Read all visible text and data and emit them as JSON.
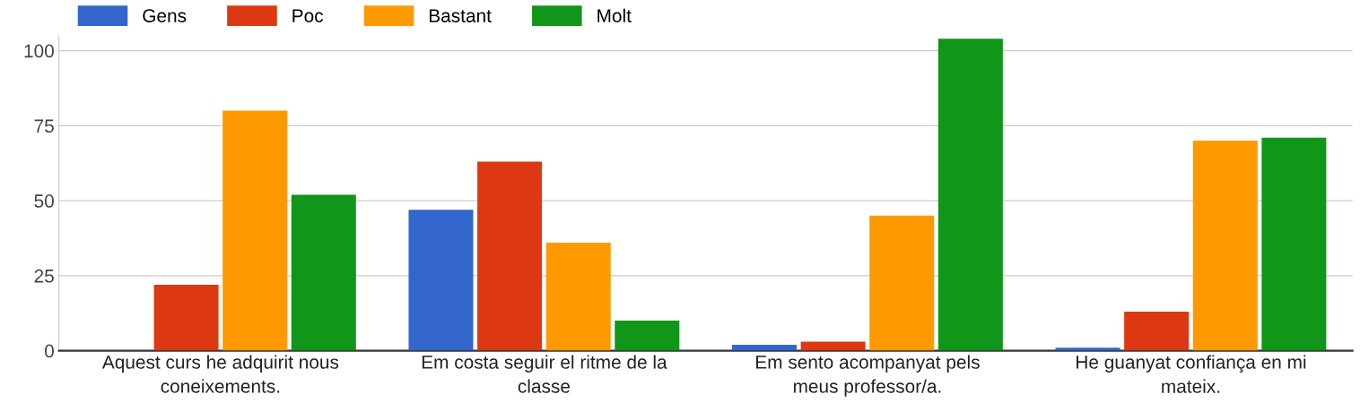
{
  "chart_data": {
    "type": "bar",
    "categories": [
      "Aquest curs he adquirit nous\nconeixements.",
      "Em costa seguir el ritme de la\nclasse",
      "Em sento acompanyat pels\nmeus professor/a.",
      "He guanyat confiança en mi\nmateix."
    ],
    "series": [
      {
        "name": "Gens",
        "color": "#3366cc",
        "values": [
          0,
          47,
          2,
          1
        ]
      },
      {
        "name": "Poc",
        "color": "#dc3912",
        "values": [
          22,
          63,
          3,
          13
        ]
      },
      {
        "name": "Bastant",
        "color": "#ff9900",
        "values": [
          80,
          36,
          45,
          70
        ]
      },
      {
        "name": "Molt",
        "color": "#109618",
        "values": [
          52,
          10,
          104,
          71
        ]
      }
    ],
    "ylim": [
      0,
      105
    ],
    "yticks": [
      0,
      25,
      50,
      75,
      100
    ],
    "grid": "y",
    "legend": "top left"
  }
}
